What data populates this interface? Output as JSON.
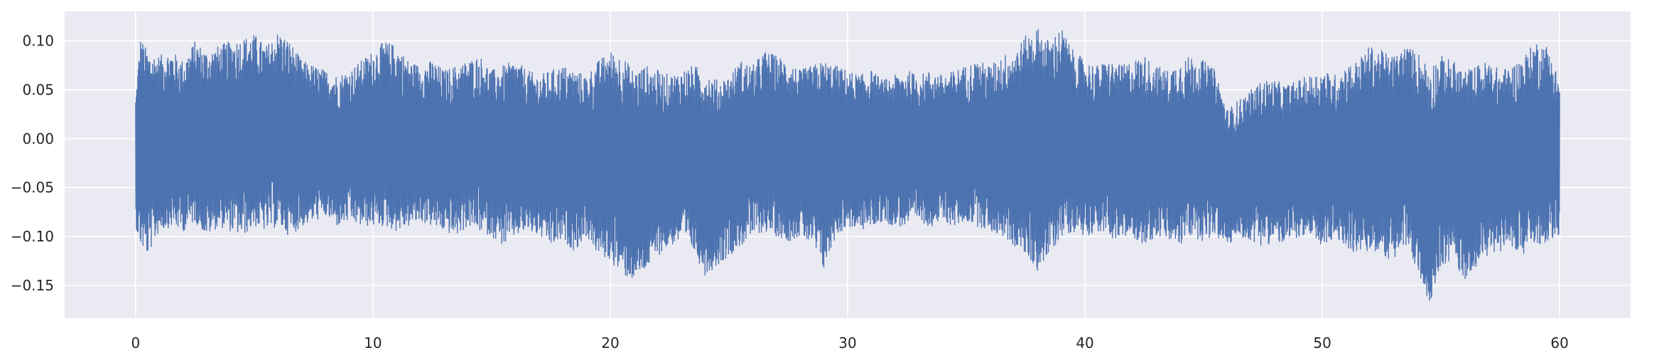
{
  "chart_data": {
    "type": "line",
    "title": "",
    "xlabel": "",
    "ylabel": "",
    "xlim": [
      -2.99,
      62.99
    ],
    "ylim": [
      -0.1835,
      0.1302
    ],
    "xticks": [
      0,
      10,
      20,
      30,
      40,
      50,
      60
    ],
    "xtick_labels": [
      "0",
      "10",
      "20",
      "30",
      "40",
      "50",
      "60"
    ],
    "yticks": [
      -0.15,
      -0.1,
      -0.05,
      0.0,
      0.05,
      0.1
    ],
    "ytick_labels": [
      "−0.15",
      "−0.10",
      "−0.05",
      "0.00",
      "0.05",
      "0.10"
    ],
    "grid": true,
    "legend": "none",
    "series": [
      {
        "color": "#4c72b0",
        "x_start": 0,
        "x_end": 60,
        "description_of_values": "dense audio-like waveform sampled over 0-60; envelope given as [x, max, min]",
        "envelope": [
          [
            0.0,
            0.045,
            -0.09
          ],
          [
            0.2,
            0.104,
            -0.11
          ],
          [
            0.5,
            0.09,
            -0.12
          ],
          [
            1.0,
            0.085,
            -0.095
          ],
          [
            1.5,
            0.09,
            -0.09
          ],
          [
            2.0,
            0.08,
            -0.095
          ],
          [
            2.5,
            0.1,
            -0.085
          ],
          [
            3.0,
            0.09,
            -0.1
          ],
          [
            3.5,
            0.095,
            -0.09
          ],
          [
            4.0,
            0.1,
            -0.095
          ],
          [
            4.5,
            0.103,
            -0.1
          ],
          [
            5.0,
            0.107,
            -0.09
          ],
          [
            5.5,
            0.095,
            -0.095
          ],
          [
            6.0,
            0.11,
            -0.09
          ],
          [
            6.5,
            0.1,
            -0.1
          ],
          [
            7.0,
            0.08,
            -0.09
          ],
          [
            7.5,
            0.075,
            -0.085
          ],
          [
            8.0,
            0.07,
            -0.08
          ],
          [
            8.5,
            0.065,
            -0.09
          ],
          [
            9.0,
            0.07,
            -0.085
          ],
          [
            9.5,
            0.08,
            -0.09
          ],
          [
            10.0,
            0.09,
            -0.09
          ],
          [
            10.5,
            0.1,
            -0.09
          ],
          [
            11.0,
            0.095,
            -0.095
          ],
          [
            11.5,
            0.08,
            -0.09
          ],
          [
            12.0,
            0.075,
            -0.085
          ],
          [
            12.5,
            0.08,
            -0.09
          ],
          [
            13.0,
            0.07,
            -0.095
          ],
          [
            13.5,
            0.075,
            -0.1
          ],
          [
            14.0,
            0.08,
            -0.09
          ],
          [
            14.5,
            0.085,
            -0.095
          ],
          [
            15.0,
            0.07,
            -0.1
          ],
          [
            15.5,
            0.075,
            -0.11
          ],
          [
            16.0,
            0.08,
            -0.1
          ],
          [
            16.5,
            0.07,
            -0.095
          ],
          [
            17.0,
            0.065,
            -0.1
          ],
          [
            17.5,
            0.07,
            -0.11
          ],
          [
            18.0,
            0.075,
            -0.105
          ],
          [
            18.5,
            0.07,
            -0.115
          ],
          [
            19.0,
            0.065,
            -0.1
          ],
          [
            19.5,
            0.08,
            -0.12
          ],
          [
            20.0,
            0.09,
            -0.125
          ],
          [
            20.5,
            0.085,
            -0.14
          ],
          [
            21.0,
            0.07,
            -0.145
          ],
          [
            21.5,
            0.075,
            -0.135
          ],
          [
            22.0,
            0.07,
            -0.12
          ],
          [
            22.5,
            0.065,
            -0.11
          ],
          [
            23.0,
            0.07,
            -0.105
          ],
          [
            23.5,
            0.075,
            -0.115
          ],
          [
            24.0,
            0.07,
            -0.14
          ],
          [
            24.5,
            0.06,
            -0.13
          ],
          [
            25.0,
            0.065,
            -0.12
          ],
          [
            25.5,
            0.08,
            -0.11
          ],
          [
            26.0,
            0.075,
            -0.1
          ],
          [
            26.5,
            0.09,
            -0.095
          ],
          [
            27.0,
            0.085,
            -0.1
          ],
          [
            27.5,
            0.08,
            -0.105
          ],
          [
            28.0,
            0.07,
            -0.1
          ],
          [
            28.5,
            0.075,
            -0.11
          ],
          [
            29.0,
            0.08,
            -0.135
          ],
          [
            29.5,
            0.075,
            -0.1
          ],
          [
            30.0,
            0.07,
            -0.09
          ],
          [
            30.5,
            0.065,
            -0.095
          ],
          [
            31.0,
            0.07,
            -0.09
          ],
          [
            31.5,
            0.06,
            -0.085
          ],
          [
            32.0,
            0.065,
            -0.09
          ],
          [
            32.5,
            0.07,
            -0.09
          ],
          [
            33.0,
            0.065,
            -0.085
          ],
          [
            33.5,
            0.07,
            -0.09
          ],
          [
            34.0,
            0.065,
            -0.085
          ],
          [
            34.5,
            0.07,
            -0.09
          ],
          [
            35.0,
            0.075,
            -0.085
          ],
          [
            35.5,
            0.08,
            -0.09
          ],
          [
            36.0,
            0.075,
            -0.095
          ],
          [
            36.5,
            0.085,
            -0.1
          ],
          [
            37.0,
            0.09,
            -0.11
          ],
          [
            37.5,
            0.105,
            -0.12
          ],
          [
            38.0,
            0.114,
            -0.135
          ],
          [
            38.5,
            0.1,
            -0.12
          ],
          [
            39.0,
            0.114,
            -0.1
          ],
          [
            39.5,
            0.09,
            -0.095
          ],
          [
            40.0,
            0.08,
            -0.1
          ],
          [
            40.5,
            0.075,
            -0.095
          ],
          [
            41.0,
            0.08,
            -0.1
          ],
          [
            41.5,
            0.075,
            -0.105
          ],
          [
            42.0,
            0.08,
            -0.1
          ],
          [
            42.5,
            0.085,
            -0.11
          ],
          [
            43.0,
            0.075,
            -0.1
          ],
          [
            43.5,
            0.07,
            -0.105
          ],
          [
            44.0,
            0.08,
            -0.11
          ],
          [
            44.5,
            0.085,
            -0.1
          ],
          [
            45.0,
            0.08,
            -0.105
          ],
          [
            45.5,
            0.07,
            -0.1
          ],
          [
            46.0,
            0.03,
            -0.11
          ],
          [
            46.5,
            0.04,
            -0.1
          ],
          [
            47.0,
            0.05,
            -0.105
          ],
          [
            47.5,
            0.06,
            -0.11
          ],
          [
            48.0,
            0.06,
            -0.105
          ],
          [
            48.5,
            0.055,
            -0.11
          ],
          [
            49.0,
            0.06,
            -0.1
          ],
          [
            49.5,
            0.065,
            -0.105
          ],
          [
            50.0,
            0.07,
            -0.11
          ],
          [
            50.5,
            0.065,
            -0.105
          ],
          [
            51.0,
            0.075,
            -0.11
          ],
          [
            51.5,
            0.08,
            -0.12
          ],
          [
            52.0,
            0.095,
            -0.115
          ],
          [
            52.5,
            0.09,
            -0.12
          ],
          [
            53.0,
            0.085,
            -0.125
          ],
          [
            53.5,
            0.095,
            -0.11
          ],
          [
            54.0,
            0.09,
            -0.135
          ],
          [
            54.5,
            0.075,
            -0.17
          ],
          [
            55.0,
            0.085,
            -0.13
          ],
          [
            55.5,
            0.08,
            -0.125
          ],
          [
            56.0,
            0.07,
            -0.145
          ],
          [
            56.5,
            0.075,
            -0.13
          ],
          [
            57.0,
            0.08,
            -0.12
          ],
          [
            57.5,
            0.07,
            -0.115
          ],
          [
            58.0,
            0.075,
            -0.11
          ],
          [
            58.5,
            0.085,
            -0.12
          ],
          [
            59.0,
            0.1,
            -0.11
          ],
          [
            59.5,
            0.095,
            -0.105
          ],
          [
            60.0,
            0.06,
            -0.1
          ]
        ]
      }
    ]
  }
}
